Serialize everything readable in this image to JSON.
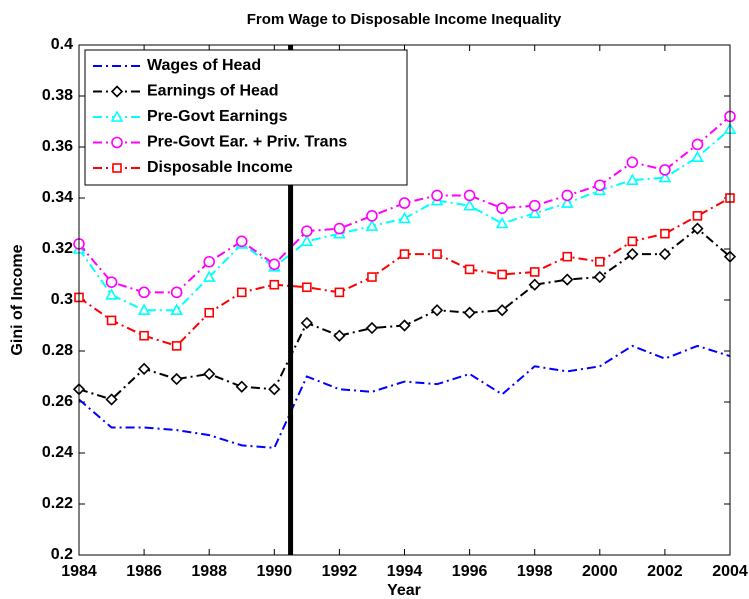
{
  "chart_data": {
    "type": "line",
    "title": "From Wage to Disposable Income Inequality",
    "xlabel": "Year",
    "ylabel": "Gini of Income",
    "x": [
      1984,
      1985,
      1986,
      1987,
      1988,
      1989,
      1990,
      1991,
      1992,
      1993,
      1994,
      1995,
      1996,
      1997,
      1998,
      1999,
      2000,
      2001,
      2002,
      2003,
      2004
    ],
    "xlim": [
      1984,
      2004
    ],
    "xticks": [
      1984,
      1986,
      1988,
      1990,
      1992,
      1994,
      1996,
      1998,
      2000,
      2002,
      2004
    ],
    "ylim": [
      0.2,
      0.4
    ],
    "yticks": [
      0.2,
      0.22,
      0.24,
      0.26,
      0.28,
      0.3,
      0.32,
      0.34,
      0.36,
      0.38,
      0.4
    ],
    "vline": 1990.5,
    "vline_color": "#000000",
    "legend": "upper left",
    "series": [
      {
        "name": "Wages of Head",
        "color": "#0000ff",
        "marker": "none",
        "values": [
          0.261,
          0.25,
          0.25,
          0.249,
          0.247,
          0.243,
          0.242,
          0.27,
          0.265,
          0.264,
          0.268,
          0.267,
          0.271,
          0.263,
          0.274,
          0.272,
          0.274,
          0.282,
          0.277,
          0.282,
          0.278
        ]
      },
      {
        "name": "Earnings of Head",
        "color": "#000000",
        "marker": "diamond",
        "values": [
          0.265,
          0.261,
          0.273,
          0.269,
          0.271,
          0.266,
          0.265,
          0.291,
          0.286,
          0.289,
          0.29,
          0.296,
          0.295,
          0.296,
          0.306,
          0.308,
          0.309,
          0.318,
          0.318,
          0.328,
          0.317
        ]
      },
      {
        "name": "Pre-Govt Earnings",
        "color": "#00ffff",
        "marker": "triangle",
        "values": [
          0.32,
          0.302,
          0.296,
          0.296,
          0.309,
          0.322,
          0.313,
          0.323,
          0.326,
          0.329,
          0.332,
          0.339,
          0.337,
          0.33,
          0.334,
          0.338,
          0.343,
          0.347,
          0.348,
          0.356,
          0.367
        ]
      },
      {
        "name": "Pre-Govt Ear. + Priv. Trans",
        "color": "#ff00ff",
        "marker": "circle",
        "values": [
          0.322,
          0.307,
          0.303,
          0.303,
          0.315,
          0.323,
          0.314,
          0.327,
          0.328,
          0.333,
          0.338,
          0.341,
          0.341,
          0.336,
          0.337,
          0.341,
          0.345,
          0.354,
          0.351,
          0.361,
          0.372
        ]
      },
      {
        "name": "Disposable Income",
        "color": "#ff0000",
        "marker": "square",
        "values": [
          0.301,
          0.292,
          0.286,
          0.282,
          0.295,
          0.303,
          0.306,
          0.305,
          0.303,
          0.309,
          0.318,
          0.318,
          0.312,
          0.31,
          0.311,
          0.317,
          0.315,
          0.323,
          0.326,
          0.333,
          0.34
        ]
      }
    ]
  }
}
